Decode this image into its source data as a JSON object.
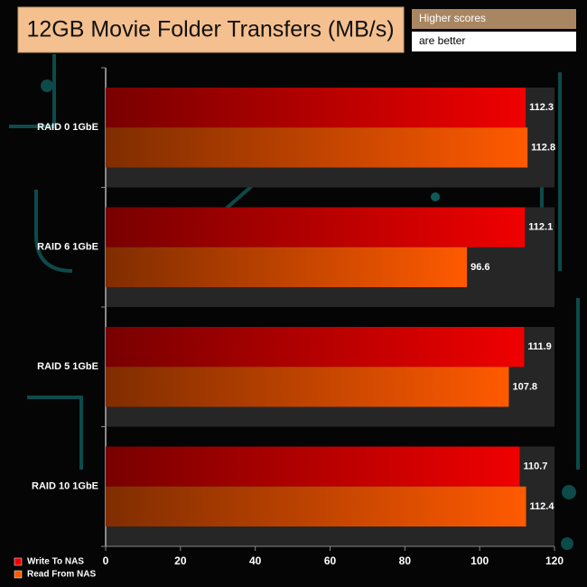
{
  "chart_data": {
    "type": "hbar",
    "title": "12GB Movie Folder Transfers (MB/s)",
    "annotations": [
      "Higher scores",
      "are better"
    ],
    "categories": [
      "RAID 0 1GbE",
      "RAID 6 1GbE",
      "RAID 5 1GbE",
      "RAID 10 1GbE"
    ],
    "series": [
      {
        "name": "Write To NAS",
        "color": "#f00000",
        "values": [
          112.3,
          112.1,
          111.9,
          110.7
        ]
      },
      {
        "name": "Read From NAS",
        "color": "#ff5a00",
        "values": [
          112.8,
          96.6,
          107.8,
          112.4
        ]
      }
    ],
    "xlim": [
      0,
      120
    ],
    "xticks": [
      0,
      20,
      40,
      60,
      80,
      100,
      120
    ]
  }
}
